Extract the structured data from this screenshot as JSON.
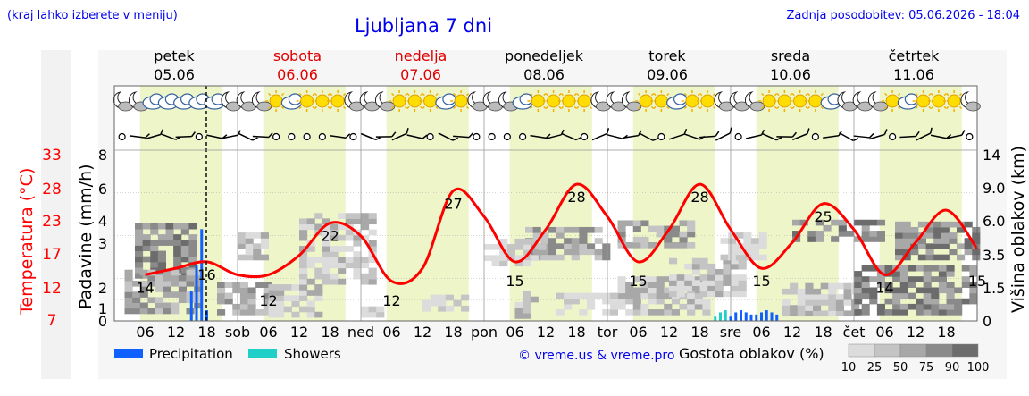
{
  "header": {
    "hint": "(kraj lahko izberete v meniju)",
    "title": "Ljubljana 7 dni",
    "updated": "Zadnja posodobitev: 05.06.2026 - 18:04"
  },
  "days": [
    {
      "name": "petek",
      "date": "05.06",
      "weekend": false,
      "abbr": ""
    },
    {
      "name": "sobota",
      "date": "06.06",
      "weekend": true,
      "abbr": "sob"
    },
    {
      "name": "nedelja",
      "date": "07.06",
      "weekend": true,
      "abbr": "ned"
    },
    {
      "name": "ponedeljek",
      "date": "08.06",
      "weekend": false,
      "abbr": "pon"
    },
    {
      "name": "torek",
      "date": "09.06",
      "weekend": false,
      "abbr": "tor"
    },
    {
      "name": "sreda",
      "date": "10.06",
      "weekend": false,
      "abbr": "sre"
    },
    {
      "name": "četrtek",
      "date": "11.06",
      "weekend": false,
      "abbr": "čet"
    }
  ],
  "hour_labels": [
    "06",
    "12",
    "18"
  ],
  "axes": {
    "temp_label": "Temperatura (°C)",
    "temp_ticks": [
      "33",
      "28",
      "23",
      "17",
      "12",
      "7"
    ],
    "precip_label": "Padavine (mm/h)",
    "precip_ticks": [
      "8",
      "6",
      "4",
      "3",
      "2",
      "1",
      "0"
    ],
    "cloud_label": "Višina oblakov (km)",
    "cloud_ticks": [
      "14",
      "9.0",
      "6.0",
      "3.5",
      "1.5",
      "0"
    ]
  },
  "legend": {
    "precipitation": "Precipitation",
    "showers": "Showers",
    "credit": "© vreme.us & vreme.pro",
    "cloud_title": "Gostota oblakov (%)",
    "cloud_scale": [
      "10",
      "25",
      "50",
      "75",
      "90",
      "100"
    ]
  },
  "colors": {
    "temperature": "#ff0000",
    "precipitation": "#1060ff",
    "showers": "#20d0c8",
    "daylight": "#eef5c8",
    "weekend_text": "#e00000",
    "link_blue": "#0000ee",
    "cloud_shades": [
      "#dcdcdc",
      "#c4c4c4",
      "#a8a8a8",
      "#8a8a8a",
      "#6c6c6c",
      "#4c4c4c"
    ]
  },
  "chart_data": {
    "type": "line",
    "x_unit": "hours from 05.06 00:00",
    "now_marker_hour": 18,
    "series": [
      {
        "name": "Temperatura (°C)",
        "x": [
          6,
          12,
          18,
          24,
          30,
          36,
          42,
          48,
          54,
          60,
          66,
          72,
          78,
          84,
          90,
          96,
          102,
          108,
          114,
          120,
          126,
          132,
          138,
          144,
          150,
          156,
          162,
          168
        ],
        "values": [
          14,
          15,
          16,
          14,
          14,
          17,
          22,
          20,
          13,
          15,
          27,
          23,
          16,
          21,
          28,
          23,
          16,
          21,
          28,
          21,
          15,
          19,
          25,
          21,
          14,
          19,
          24,
          18
        ]
      }
    ],
    "annotations": [
      {
        "x": 6,
        "value": 14,
        "label": "14"
      },
      {
        "x": 18,
        "value": 16,
        "label": "16"
      },
      {
        "x": 30,
        "value": 12,
        "label": "12"
      },
      {
        "x": 42,
        "value": 22,
        "label": "22"
      },
      {
        "x": 54,
        "value": 12,
        "label": "12"
      },
      {
        "x": 66,
        "value": 27,
        "label": "27"
      },
      {
        "x": 78,
        "value": 15,
        "label": "15"
      },
      {
        "x": 90,
        "value": 28,
        "label": "28"
      },
      {
        "x": 102,
        "value": 15,
        "label": "15"
      },
      {
        "x": 114,
        "value": 28,
        "label": "28"
      },
      {
        "x": 126,
        "value": 15,
        "label": "15"
      },
      {
        "x": 138,
        "value": 25,
        "label": "25"
      },
      {
        "x": 150,
        "value": 14,
        "label": "14"
      },
      {
        "x": 168,
        "value": 15,
        "label": "15"
      }
    ],
    "precipitation": {
      "name": "Precipitation",
      "x": [
        15,
        16,
        17,
        18,
        120,
        121,
        122,
        123,
        124,
        125,
        126,
        127,
        128,
        129
      ],
      "values": [
        1.4,
        2.6,
        4.3,
        0.5,
        0.2,
        0.4,
        0.5,
        0.4,
        0.3,
        0.3,
        0.4,
        0.5,
        0.4,
        0.3
      ]
    },
    "showers": {
      "name": "Showers",
      "x": [
        117,
        118,
        119
      ],
      "values": [
        0.2,
        0.4,
        0.5
      ]
    },
    "precip_ylim": [
      0,
      8
    ],
    "temp_ylim": [
      7,
      33
    ],
    "cloud_ylim_km": [
      0,
      14
    ]
  }
}
